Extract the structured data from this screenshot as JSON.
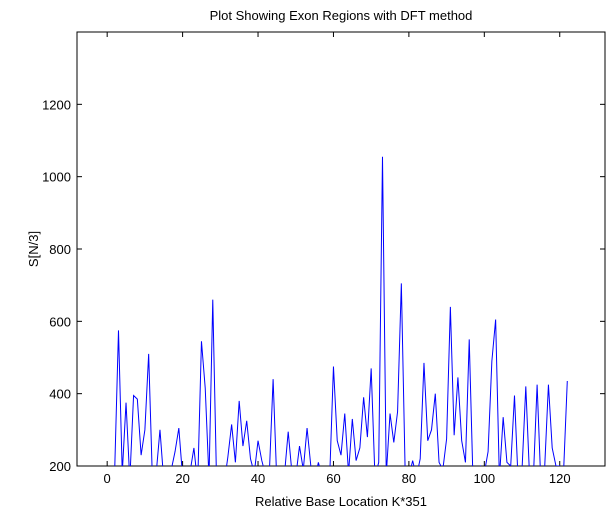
{
  "chart_data": {
    "type": "line",
    "title": "Plot Showing Exon Regions with DFT method",
    "xlabel": "Relative Base Location K*351",
    "ylabel": "S[N/3]",
    "xlim": [
      -8,
      132
    ],
    "ylim": [
      200,
      1400
    ],
    "xticks": [
      "0",
      "20",
      "40",
      "60",
      "80",
      "100",
      "120"
    ],
    "yticks": [
      "200",
      "400",
      "600",
      "800",
      "1000",
      "1200"
    ],
    "grid": false,
    "line_color": "#0000ff",
    "series": [
      {
        "x": [
          1,
          2,
          3,
          4,
          5,
          6,
          7,
          8,
          9,
          10,
          11,
          12,
          13,
          14,
          15,
          16,
          17,
          18,
          19,
          20,
          21,
          22,
          23,
          24,
          25,
          26,
          27,
          28,
          29,
          30,
          31,
          32,
          33,
          34,
          35,
          36,
          37,
          38,
          39,
          40,
          41,
          42,
          43,
          44,
          45,
          46,
          47,
          48,
          49,
          50,
          51,
          52,
          53,
          54,
          55,
          56,
          57,
          58,
          59,
          60,
          61,
          62,
          63,
          64,
          65,
          66,
          67,
          68,
          69,
          70,
          71,
          72,
          73,
          74,
          75,
          76,
          77,
          78,
          79,
          80,
          81,
          82,
          83,
          84,
          85,
          86,
          87,
          88,
          89,
          90,
          91,
          92,
          93,
          94,
          95,
          96,
          97,
          98,
          99,
          100,
          101,
          102,
          103,
          104,
          105,
          106,
          107,
          108,
          109,
          110,
          111,
          112,
          113,
          114,
          115,
          116,
          117,
          118,
          119,
          120,
          121,
          122
        ],
        "y": [
          150,
          190,
          575,
          180,
          375,
          160,
          395,
          385,
          230,
          300,
          510,
          160,
          180,
          300,
          160,
          170,
          190,
          240,
          305,
          170,
          190,
          185,
          250,
          150,
          545,
          415,
          165,
          660,
          160,
          190,
          150,
          225,
          315,
          210,
          380,
          255,
          325,
          220,
          180,
          270,
          215,
          175,
          180,
          440,
          150,
          190,
          175,
          295,
          180,
          170,
          255,
          190,
          305,
          200,
          160,
          210,
          170,
          180,
          170,
          475,
          270,
          230,
          345,
          180,
          330,
          215,
          250,
          390,
          280,
          470,
          170,
          210,
          1055,
          175,
          345,
          265,
          350,
          705,
          190,
          170,
          215,
          170,
          220,
          485,
          270,
          300,
          400,
          210,
          190,
          275,
          640,
          285,
          445,
          270,
          210,
          550,
          160,
          190,
          200,
          180,
          240,
          490,
          605,
          165,
          335,
          210,
          200,
          395,
          150,
          190,
          420,
          170,
          165,
          425,
          150,
          195,
          425,
          250,
          200,
          200,
          180,
          435
        ]
      }
    ]
  }
}
